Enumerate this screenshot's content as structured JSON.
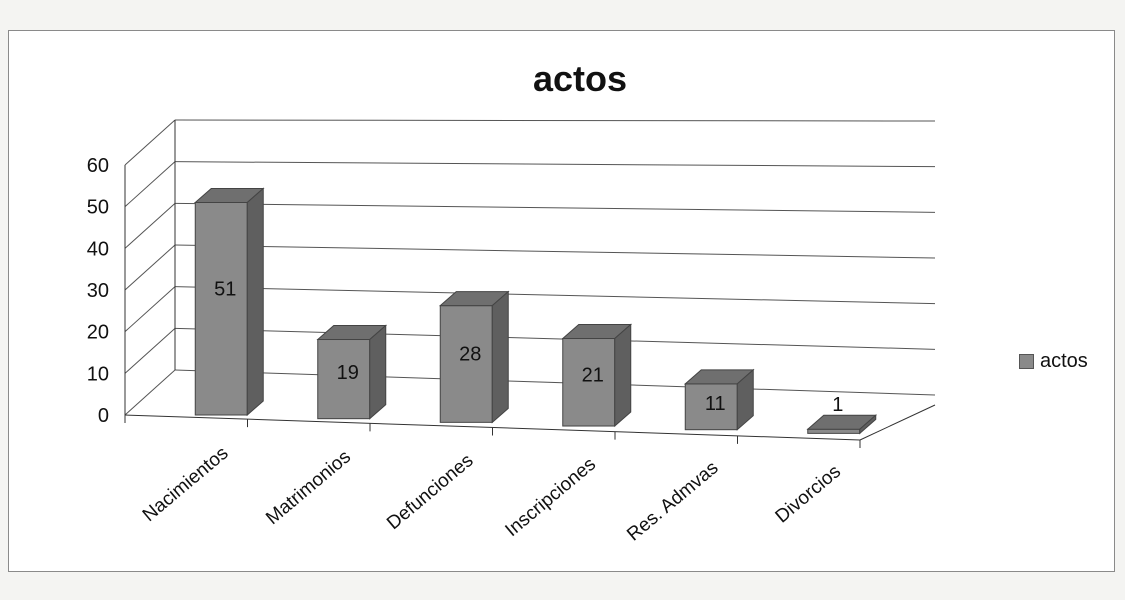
{
  "chart_data": {
    "type": "bar",
    "title": "actos",
    "categories": [
      "Nacimientos",
      "Matrimonios",
      "Defunciones",
      "Inscripciones",
      "Res. Admvas",
      "Divorcios"
    ],
    "series": [
      {
        "name": "actos",
        "values": [
          51,
          19,
          28,
          21,
          11,
          1
        ]
      }
    ],
    "data_labels": [
      "51",
      "19",
      "28",
      "21",
      "11",
      "1"
    ],
    "ylim": [
      0,
      60
    ],
    "yticks": [
      0,
      10,
      20,
      30,
      40,
      50,
      60
    ],
    "ytick_labels": [
      "0",
      "10",
      "20",
      "30",
      "40",
      "50",
      "60"
    ],
    "xlabel": "",
    "ylabel": "",
    "grid": true,
    "legend_position": "right",
    "three_d": true,
    "colors": {
      "bar_front": "#8a8a8a",
      "bar_top": "#6f6f6f",
      "bar_side": "#5f5f5f",
      "grid": "#555555",
      "axis": "#333333"
    }
  }
}
